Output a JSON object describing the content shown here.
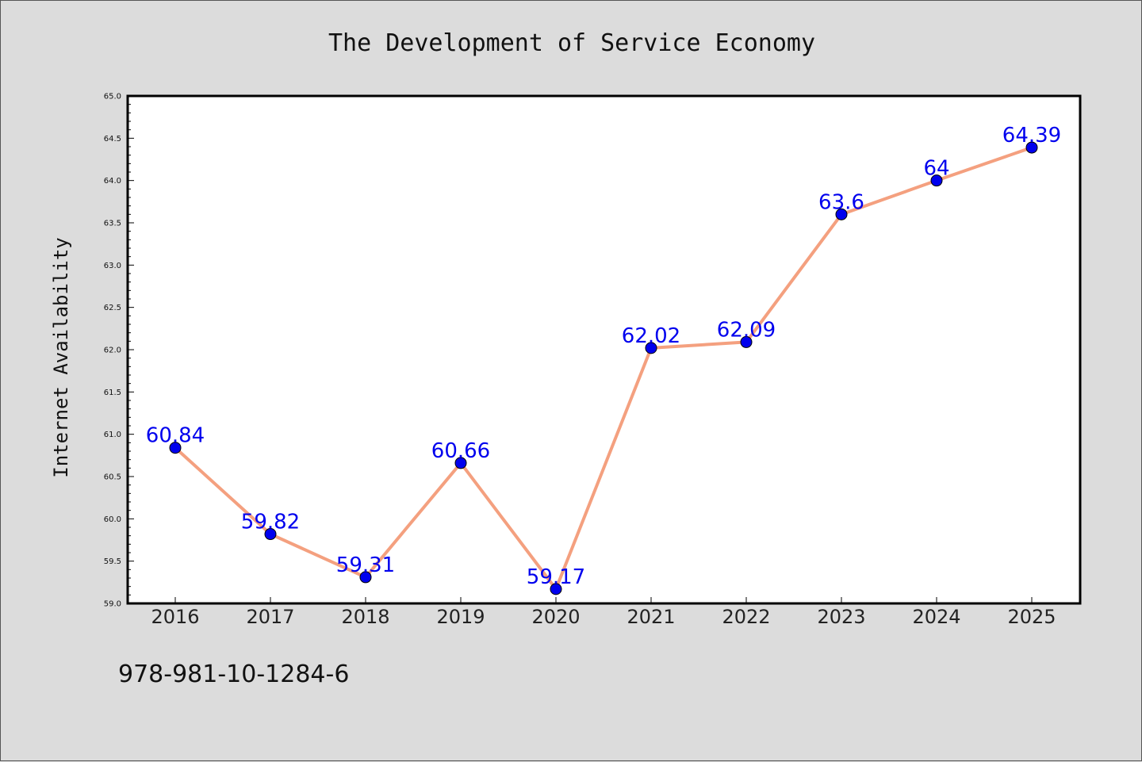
{
  "chart_data": {
    "type": "line",
    "title": "The Development of Service Economy",
    "xlabel": "",
    "ylabel": "Internet Availability",
    "categories": [
      "2016",
      "2017",
      "2018",
      "2019",
      "2020",
      "2021",
      "2022",
      "2023",
      "2024",
      "2025"
    ],
    "values": [
      60.84,
      59.82,
      59.31,
      60.66,
      59.17,
      62.02,
      62.09,
      63.6,
      64,
      64.39
    ],
    "data_labels": [
      "60.84",
      "59.82",
      "59.31",
      "60.66",
      "59.17",
      "62.02",
      "62.09",
      "63.6",
      "64",
      "64.39"
    ],
    "ylim": [
      59.0,
      65.0
    ],
    "yticks": [
      "59.0",
      "59.5",
      "60.0",
      "60.5",
      "61.0",
      "61.5",
      "62.0",
      "62.5",
      "63.0",
      "63.5",
      "64.0",
      "64.5",
      "65.0"
    ],
    "grid": false,
    "legend": "none",
    "line_color": "#f4a07f",
    "marker_color": "#0000ee",
    "label_color": "#0000ee"
  },
  "footnote": "978-981-10-1284-6"
}
